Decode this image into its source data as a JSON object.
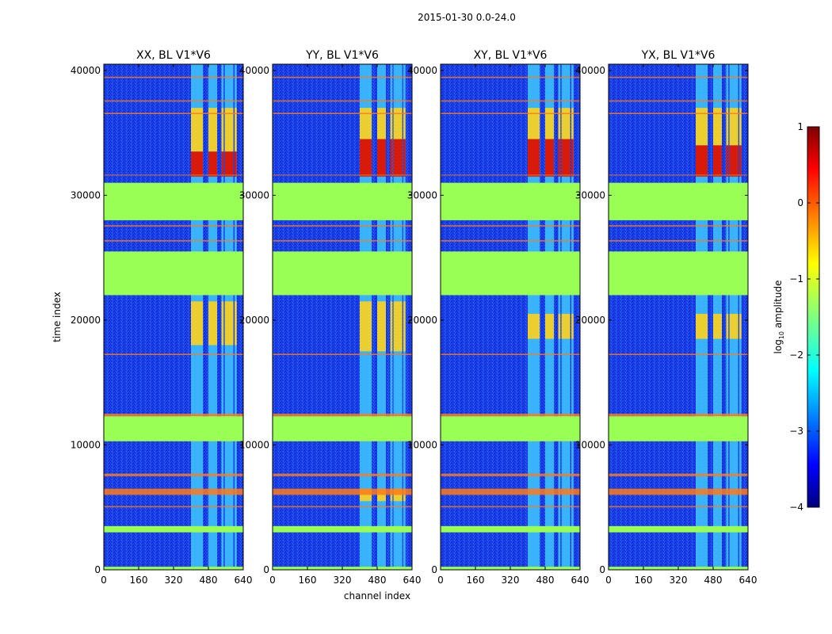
{
  "figure": {
    "suptitle": "2015-01-30 0.0-24.0"
  },
  "chart_data": {
    "type": "heatmap",
    "xlabel": "channel index",
    "ylabel": "time index",
    "xlim": [
      0,
      640
    ],
    "ylim": [
      0,
      40500
    ],
    "x_ticks": [
      "0",
      "160",
      "320",
      "480",
      "640"
    ],
    "y_ticks": [
      "0",
      "10000",
      "20000",
      "30000",
      "40000"
    ],
    "colormap": "jet",
    "colorbar": {
      "label": "log10 amplitude",
      "label_main": "log",
      "label_sub": "10",
      "label_rest": " amplitude",
      "range": [
        -4,
        1
      ],
      "ticks": [
        "1",
        "0",
        "−1",
        "−2",
        "−3",
        "−4"
      ]
    },
    "panels": [
      {
        "title": "XX, BL V1*V6",
        "strong_rows": [
          [
            31500,
            33500
          ]
        ],
        "med_rows": [
          [
            33500,
            37000
          ],
          [
            18000,
            21500
          ]
        ]
      },
      {
        "title": "YY, BL V1*V6",
        "strong_rows": [
          [
            31500,
            34500
          ]
        ],
        "med_rows": [
          [
            34500,
            37000
          ],
          [
            17500,
            21500
          ],
          [
            5500,
            6500
          ]
        ]
      },
      {
        "title": "XY, BL V1*V6",
        "strong_rows": [
          [
            31500,
            34500
          ]
        ],
        "med_rows": [
          [
            34500,
            37000
          ],
          [
            18500,
            20500
          ]
        ]
      },
      {
        "title": "YX, BL V1*V6",
        "strong_rows": [
          [
            31500,
            34000
          ]
        ],
        "med_rows": [
          [
            34000,
            37000
          ],
          [
            18500,
            20500
          ]
        ]
      }
    ],
    "flagged_time_ranges": [
      [
        28000,
        31000
      ],
      [
        22000,
        25500
      ],
      [
        10300,
        12300
      ],
      [
        3000,
        3500
      ],
      [
        0,
        250
      ]
    ],
    "band_channels": [
      [
        400,
        455
      ],
      [
        480,
        520
      ],
      [
        540,
        550
      ],
      [
        555,
        595
      ],
      [
        600,
        610
      ]
    ],
    "hot_rows": [
      [
        39400,
        39500
      ],
      [
        37500,
        37600
      ],
      [
        36500,
        36600
      ],
      [
        31600,
        31650
      ],
      [
        27500,
        27600
      ],
      [
        26300,
        26400
      ],
      [
        17200,
        17300
      ],
      [
        12300,
        12500
      ],
      [
        10300,
        10400
      ],
      [
        7500,
        7700
      ],
      [
        6000,
        6500
      ],
      [
        5000,
        5100
      ]
    ]
  }
}
